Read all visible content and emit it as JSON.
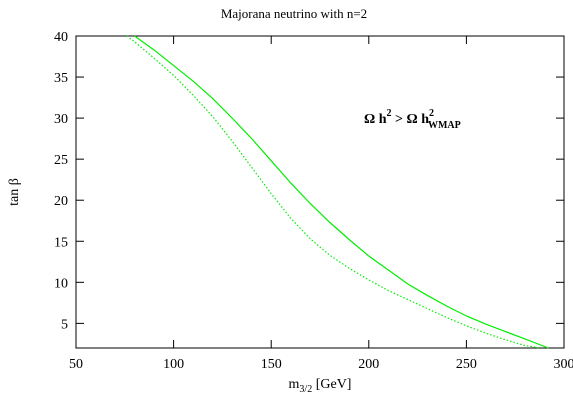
{
  "chart_data": {
    "type": "line",
    "title": "Majorana neutrino with n=2",
    "xlabel": {
      "main": "m",
      "sub": "3/2",
      "unit": " [GeV]"
    },
    "ylabel": "tan β",
    "xlim": [
      50,
      300
    ],
    "ylim": [
      2,
      40
    ],
    "xticks": [
      50,
      100,
      150,
      200,
      250,
      300
    ],
    "yticks": [
      5,
      10,
      15,
      20,
      25,
      30,
      35,
      40
    ],
    "grid": false,
    "legend": "none",
    "annotation": {
      "lhs": "Ω h",
      "exp1": "2",
      "rel": " > Ω h",
      "exp2": "2",
      "sub": "WMAP"
    },
    "series": [
      {
        "style": "solid",
        "color": "#00ee00",
        "x": [
          80,
          90,
          100,
          110,
          120,
          130,
          140,
          150,
          160,
          170,
          180,
          190,
          200,
          210,
          220,
          230,
          240,
          250,
          260,
          270,
          280,
          292
        ],
        "y": [
          40,
          38.3,
          36.4,
          34.5,
          32.4,
          30.0,
          27.5,
          24.8,
          22.1,
          19.6,
          17.3,
          15.2,
          13.2,
          11.5,
          9.8,
          8.4,
          7.1,
          5.9,
          4.9,
          4.0,
          3.1,
          2.0
        ]
      },
      {
        "style": "dotted",
        "color": "#00ee00",
        "x": [
          76,
          80,
          90,
          100,
          110,
          120,
          130,
          140,
          150,
          160,
          170,
          180,
          190,
          200,
          210,
          220,
          230,
          240,
          250,
          260,
          270,
          280,
          288
        ],
        "y": [
          40,
          39.3,
          37.3,
          35.2,
          32.8,
          30.2,
          27.2,
          24.0,
          20.8,
          17.8,
          15.3,
          13.3,
          11.7,
          10.3,
          9.0,
          7.9,
          6.8,
          5.7,
          4.7,
          3.8,
          3.0,
          2.3,
          2.0
        ]
      }
    ]
  }
}
